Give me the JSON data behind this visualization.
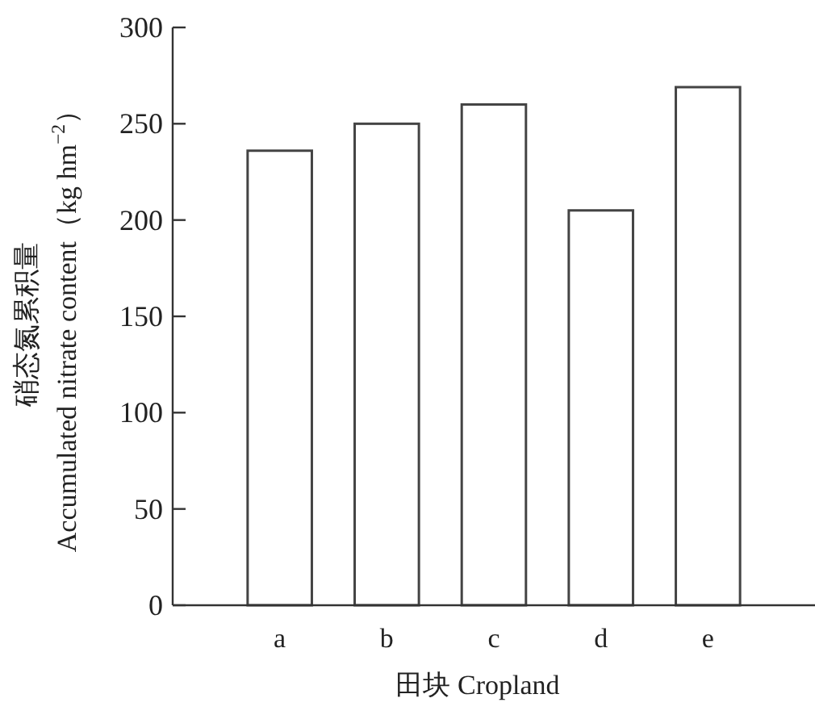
{
  "chart_data": {
    "type": "bar",
    "xlabel": "田块 Cropland",
    "ylabel": "硝态氮累积量\nAccumulated nitrate content（kg hm$^{−2}$）",
    "categories": [
      "a",
      "b",
      "c",
      "d",
      "e"
    ],
    "series": [
      {
        "color": "#ffffff",
        "values": [
          236,
          250,
          260,
          205,
          269
        ]
      }
    ],
    "ylim": [
      0,
      300
    ],
    "yticks": [
      0,
      50,
      100,
      150,
      200,
      250,
      300
    ],
    "grid": false
  }
}
